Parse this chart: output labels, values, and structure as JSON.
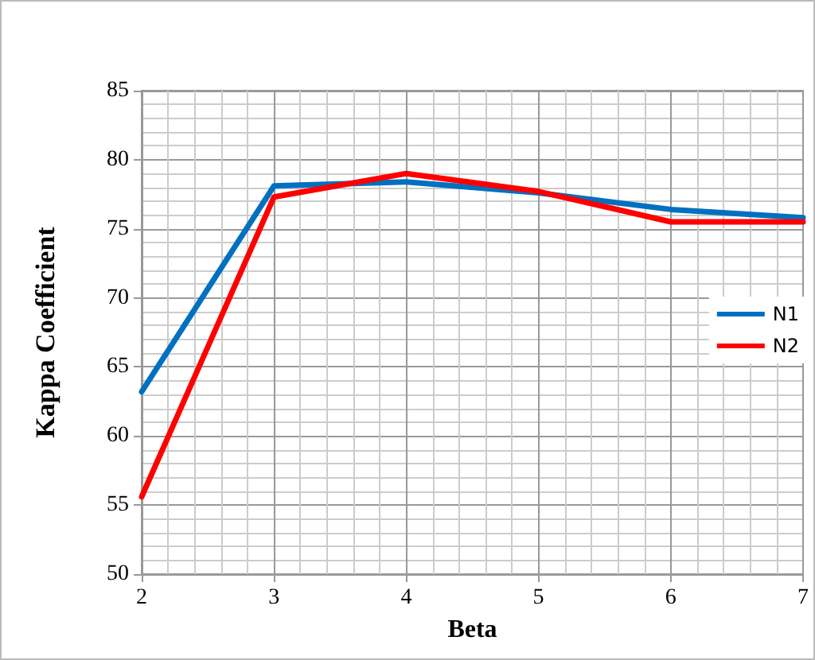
{
  "chart_data": {
    "type": "line",
    "xlabel": "Beta",
    "ylabel": "Kappa Coefficient",
    "x": [
      2,
      3,
      4,
      5,
      6,
      7
    ],
    "series": [
      {
        "name": "N1",
        "color": "#0070c0",
        "values": [
          63.2,
          78.1,
          78.4,
          77.6,
          76.4,
          75.8
        ]
      },
      {
        "name": "N2",
        "color": "#ff0000",
        "values": [
          55.6,
          77.3,
          79.0,
          77.7,
          75.5,
          75.5
        ]
      }
    ],
    "xlim": [
      2,
      7
    ],
    "xticks": [
      2,
      3,
      4,
      5,
      6,
      7
    ],
    "ylim": [
      50,
      85
    ],
    "yticks": [
      50,
      55,
      60,
      65,
      70,
      75,
      80,
      85
    ],
    "grid": true,
    "legend": "right",
    "marker": "none",
    "line_style": "solid"
  }
}
